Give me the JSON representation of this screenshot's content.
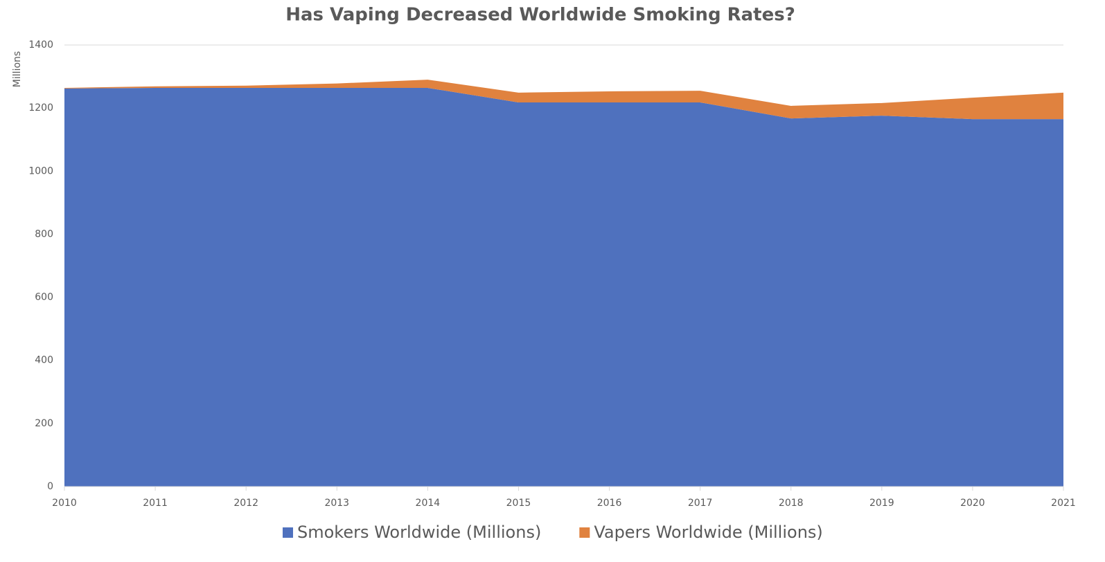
{
  "chart_data": {
    "type": "stacked-area",
    "title": "Has Vaping Decreased Worldwide Smoking Rates?",
    "y_label": "Millions",
    "x": [
      2010,
      2011,
      2012,
      2013,
      2014,
      2015,
      2016,
      2017,
      2018,
      2019,
      2020,
      2021
    ],
    "xlim": [
      2010,
      2021
    ],
    "series": [
      {
        "name": "Smokers Worldwide (Millions)",
        "color": "#4f71be",
        "values": [
          1262,
          1264,
          1264,
          1264,
          1264,
          1218,
          1218,
          1218,
          1167,
          1176,
          1165,
          1165
        ]
      },
      {
        "name": "Vapers Worldwide (Millions)",
        "color": "#e0823f",
        "values": [
          2,
          5,
          7,
          14,
          26,
          31,
          35,
          37,
          40,
          40,
          68,
          84
        ]
      }
    ],
    "ylim": [
      0,
      1400
    ],
    "yticks": [
      0,
      200,
      400,
      600,
      800,
      1000,
      1200,
      1400
    ],
    "grid": true,
    "legend": "bottom"
  }
}
